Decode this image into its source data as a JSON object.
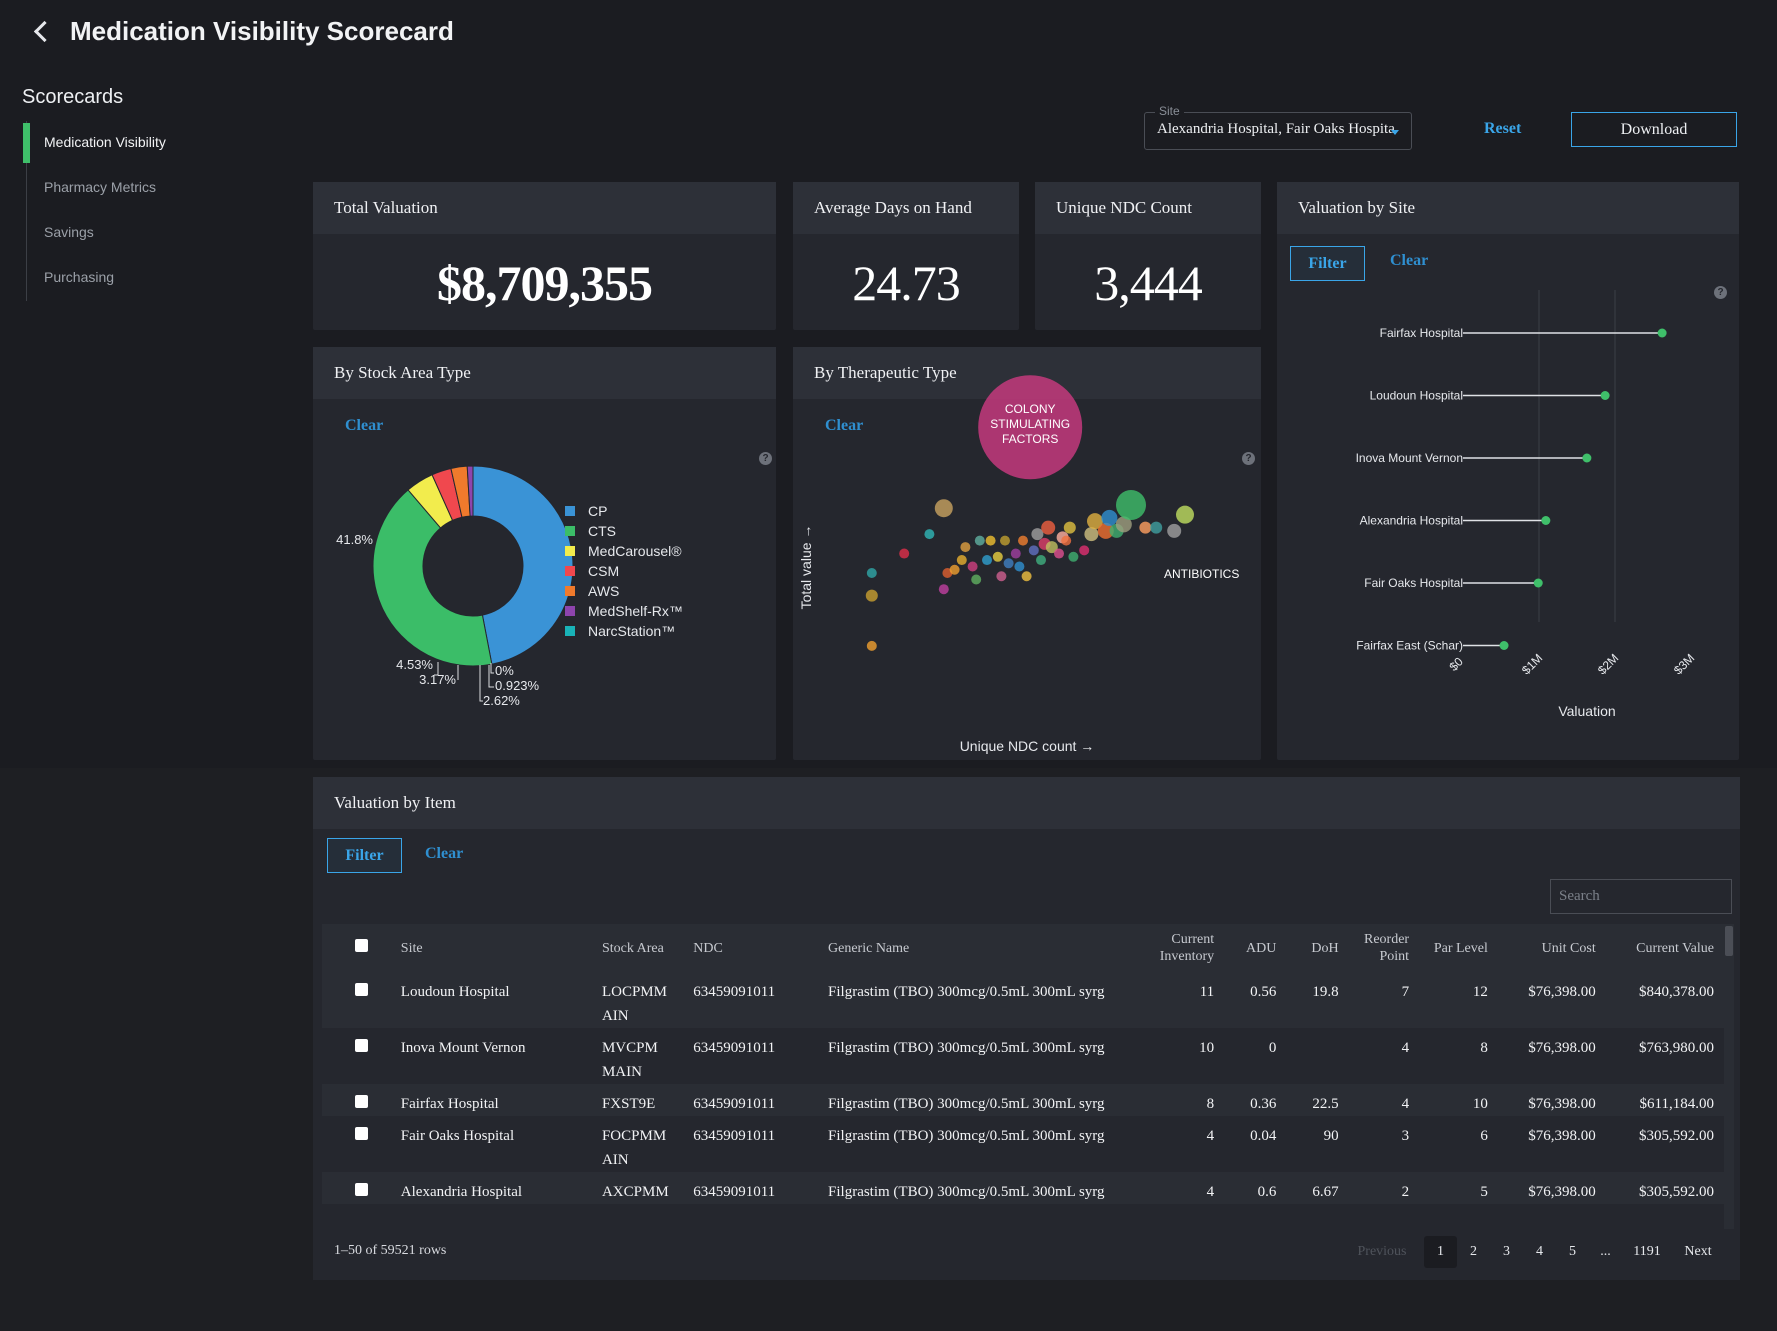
{
  "header": {
    "title": "Medication Visibility Scorecard"
  },
  "sidebar": {
    "heading": "Scorecards",
    "items": [
      {
        "label": "Medication Visibility",
        "active": true
      },
      {
        "label": "Pharmacy Metrics",
        "active": false
      },
      {
        "label": "Savings",
        "active": false
      },
      {
        "label": "Purchasing",
        "active": false
      }
    ]
  },
  "toolbar": {
    "site_label": "Site",
    "site_value": "Alexandria Hospital, Fair Oaks Hospital,",
    "reset_label": "Reset",
    "download_label": "Download"
  },
  "kpis": {
    "total_valuation": {
      "label": "Total Valuation",
      "value": "$8,709,355"
    },
    "avg_days": {
      "label": "Average Days on Hand",
      "value": "24.73"
    },
    "unique_ndc": {
      "label": "Unique NDC Count",
      "value": "3,444"
    }
  },
  "common": {
    "clear_label": "Clear",
    "filter_label": "Filter",
    "help_glyph": "?"
  },
  "colors": {
    "accent": "#3aa5e8",
    "active_green": "#3fbf6a",
    "background": "#1b1c21",
    "card": "#25272e"
  },
  "stock_area": {
    "title": "By Stock Area Type",
    "chart_data": {
      "type": "pie",
      "donut": true,
      "slices": [
        {
          "label": "CP",
          "value": 47.0,
          "color": "#3a93d6"
        },
        {
          "label": "CTS",
          "value": 41.8,
          "color": "#3bbd68",
          "display": "41.8%"
        },
        {
          "label": "MedCarousel®",
          "value": 4.53,
          "color": "#f2ec4d",
          "display": "4.53%"
        },
        {
          "label": "CSM",
          "value": 3.17,
          "color": "#f0484e",
          "display": "3.17%"
        },
        {
          "label": "AWS",
          "value": 2.62,
          "color": "#f07a2c",
          "display": "2.62%"
        },
        {
          "label": "MedShelf-Rx™",
          "value": 0.923,
          "color": "#8e44ad",
          "display": "0.923%"
        },
        {
          "label": "NarcStation™",
          "value": 0.0,
          "color": "#19b3b8",
          "display": "0%"
        }
      ],
      "legend_position": "right"
    }
  },
  "therapeutic": {
    "title": "By Therapeutic Type",
    "chart_data": {
      "type": "scatter",
      "xlabel": "Unique NDC count →",
      "ylabel": "Total value →",
      "labeled_points": [
        "COLONY STIMULATING FACTORS",
        "ANTIBIOTICS"
      ],
      "points": [
        {
          "x": 0.08,
          "y": 0.05,
          "r": 5,
          "color": "#f0a030"
        },
        {
          "x": 0.08,
          "y": 0.36,
          "r": 6,
          "color": "#c9a030"
        },
        {
          "x": 0.08,
          "y": 0.5,
          "r": 5,
          "color": "#2fa8a8"
        },
        {
          "x": 0.28,
          "y": 0.9,
          "r": 9,
          "color": "#c9a460"
        },
        {
          "x": 0.24,
          "y": 0.74,
          "r": 5,
          "color": "#2fb8b8"
        },
        {
          "x": 0.17,
          "y": 0.62,
          "r": 5,
          "color": "#e0304a"
        },
        {
          "x": 0.29,
          "y": 0.5,
          "r": 5,
          "color": "#e06030"
        },
        {
          "x": 0.28,
          "y": 0.4,
          "r": 5,
          "color": "#c040a0"
        },
        {
          "x": 0.31,
          "y": 0.52,
          "r": 5,
          "color": "#f0a030"
        },
        {
          "x": 0.33,
          "y": 0.58,
          "r": 5,
          "color": "#e8b030"
        },
        {
          "x": 0.34,
          "y": 0.66,
          "r": 5,
          "color": "#e0a040"
        },
        {
          "x": 0.36,
          "y": 0.54,
          "r": 5,
          "color": "#d04080"
        },
        {
          "x": 0.37,
          "y": 0.46,
          "r": 5,
          "color": "#60b060"
        },
        {
          "x": 0.38,
          "y": 0.7,
          "r": 5,
          "color": "#60b0a0"
        },
        {
          "x": 0.4,
          "y": 0.58,
          "r": 5,
          "color": "#30a0d0"
        },
        {
          "x": 0.41,
          "y": 0.7,
          "r": 5,
          "color": "#f0c030"
        },
        {
          "x": 0.43,
          "y": 0.6,
          "r": 5,
          "color": "#e8d040"
        },
        {
          "x": 0.44,
          "y": 0.48,
          "r": 5,
          "color": "#d06090"
        },
        {
          "x": 0.45,
          "y": 0.7,
          "r": 5,
          "color": "#c0a030"
        },
        {
          "x": 0.46,
          "y": 0.56,
          "r": 5,
          "color": "#4080c0"
        },
        {
          "x": 0.48,
          "y": 0.62,
          "r": 5,
          "color": "#a040a0"
        },
        {
          "x": 0.49,
          "y": 0.54,
          "r": 5,
          "color": "#3090d0"
        },
        {
          "x": 0.5,
          "y": 0.7,
          "r": 5,
          "color": "#f08030"
        },
        {
          "x": 0.51,
          "y": 0.48,
          "r": 5,
          "color": "#f0c040"
        },
        {
          "x": 0.53,
          "y": 0.64,
          "r": 5,
          "color": "#6070c0"
        },
        {
          "x": 0.54,
          "y": 0.74,
          "r": 6,
          "color": "#a0a0a0"
        },
        {
          "x": 0.55,
          "y": 0.58,
          "r": 5,
          "color": "#40b080"
        },
        {
          "x": 0.56,
          "y": 0.68,
          "r": 6,
          "color": "#e0406a"
        },
        {
          "x": 0.57,
          "y": 0.78,
          "r": 7,
          "color": "#f06040"
        },
        {
          "x": 0.58,
          "y": 0.66,
          "r": 6,
          "color": "#c0c060"
        },
        {
          "x": 0.6,
          "y": 0.62,
          "r": 5,
          "color": "#e05090"
        },
        {
          "x": 0.61,
          "y": 0.72,
          "r": 6,
          "color": "#ffb0a0"
        },
        {
          "x": 0.62,
          "y": 0.7,
          "r": 5,
          "color": "#f07040"
        },
        {
          "x": 0.63,
          "y": 0.78,
          "r": 6,
          "color": "#e0c040"
        },
        {
          "x": 0.64,
          "y": 0.6,
          "r": 5,
          "color": "#40b070"
        },
        {
          "x": 0.67,
          "y": 0.64,
          "r": 5,
          "color": "#e03070"
        },
        {
          "x": 0.69,
          "y": 0.74,
          "r": 7,
          "color": "#d0c080"
        },
        {
          "x": 0.7,
          "y": 0.82,
          "r": 8,
          "color": "#e0b040"
        },
        {
          "x": 0.73,
          "y": 0.76,
          "r": 8,
          "color": "#f07030"
        },
        {
          "x": 0.74,
          "y": 0.84,
          "r": 8,
          "color": "#3090d0"
        },
        {
          "x": 0.76,
          "y": 0.76,
          "r": 7,
          "color": "#40b070"
        },
        {
          "x": 0.78,
          "y": 0.8,
          "r": 8,
          "color": "#a0a080"
        },
        {
          "x": 0.8,
          "y": 0.92,
          "r": 15,
          "color": "#3fbf6a"
        },
        {
          "x": 0.84,
          "y": 0.78,
          "r": 6,
          "color": "#ffa060"
        },
        {
          "x": 0.87,
          "y": 0.78,
          "r": 6,
          "color": "#40a0a0"
        },
        {
          "x": 0.92,
          "y": 0.76,
          "r": 7,
          "color": "#a0a0a0"
        },
        {
          "x": 0.95,
          "y": 0.86,
          "r": 9,
          "color": "#c0e060"
        },
        {
          "x": 0.52,
          "y": 1.4,
          "r": 52,
          "color": "#c43a7c"
        }
      ]
    }
  },
  "valuation_by_site": {
    "title": "Valuation by Site",
    "chart_data": {
      "type": "scatter",
      "subtype": "lollipop",
      "xlabel": "Valuation",
      "xlim": [
        0,
        3000000
      ],
      "xticks": [
        "$0",
        "$1M",
        "$2M",
        "$3M"
      ],
      "categories": [
        "Fairfax Hospital",
        "Loudoun Hospital",
        "Inova Mount Vernon",
        "Alexandria Hospital",
        "Fair Oaks Hospital",
        "Fairfax East (Schar)"
      ],
      "values": [
        2620000,
        1870000,
        1630000,
        1090000,
        990000,
        540000
      ],
      "color": "#3fbf6a"
    }
  },
  "valuation_by_item": {
    "title": "Valuation by Item",
    "search_placeholder": "Search",
    "columns": [
      "Site",
      "Stock Area",
      "NDC",
      "Generic Name",
      "Current Inventory",
      "ADU",
      "DoH",
      "Reorder Point",
      "Par Level",
      "Unit Cost",
      "Current Value"
    ],
    "rows": [
      {
        "site": "Loudoun Hospital",
        "stock_area": "LOCPMM AIN",
        "ndc": "63459091011",
        "generic": "Filgrastim (TBO) 300mcg/0.5mL 300mL syrg",
        "inventory": "11",
        "adu": "0.56",
        "doh": "19.8",
        "reorder": "7",
        "par": "12",
        "unit_cost": "$76,398.00",
        "value": "$840,378.00"
      },
      {
        "site": "Inova Mount Vernon",
        "stock_area": "MVCPM MAIN",
        "ndc": "63459091011",
        "generic": "Filgrastim (TBO) 300mcg/0.5mL 300mL syrg",
        "inventory": "10",
        "adu": "0",
        "doh": "",
        "reorder": "4",
        "par": "8",
        "unit_cost": "$76,398.00",
        "value": "$763,980.00"
      },
      {
        "site": "Fairfax Hospital",
        "stock_area": "FXST9E",
        "ndc": "63459091011",
        "generic": "Filgrastim (TBO) 300mcg/0.5mL 300mL syrg",
        "inventory": "8",
        "adu": "0.36",
        "doh": "22.5",
        "reorder": "4",
        "par": "10",
        "unit_cost": "$76,398.00",
        "value": "$611,184.00"
      },
      {
        "site": "Fair Oaks Hospital",
        "stock_area": "FOCPMM AIN",
        "ndc": "63459091011",
        "generic": "Filgrastim (TBO) 300mcg/0.5mL 300mL syrg",
        "inventory": "4",
        "adu": "0.04",
        "doh": "90",
        "reorder": "3",
        "par": "6",
        "unit_cost": "$76,398.00",
        "value": "$305,592.00"
      },
      {
        "site": "Alexandria Hospital",
        "stock_area": "AXCPMM",
        "ndc": "63459091011",
        "generic": "Filgrastim (TBO) 300mcg/0.5mL 300mL syrg",
        "inventory": "4",
        "adu": "0.6",
        "doh": "6.67",
        "reorder": "2",
        "par": "5",
        "unit_cost": "$76,398.00",
        "value": "$305,592.00"
      }
    ],
    "row_count": "1–50 of 59521 rows",
    "pagination": {
      "previous": "Previous",
      "pages": [
        "1",
        "2",
        "3",
        "4",
        "5"
      ],
      "ellipsis": "...",
      "last": "1191",
      "next": "Next",
      "current": "1"
    }
  }
}
